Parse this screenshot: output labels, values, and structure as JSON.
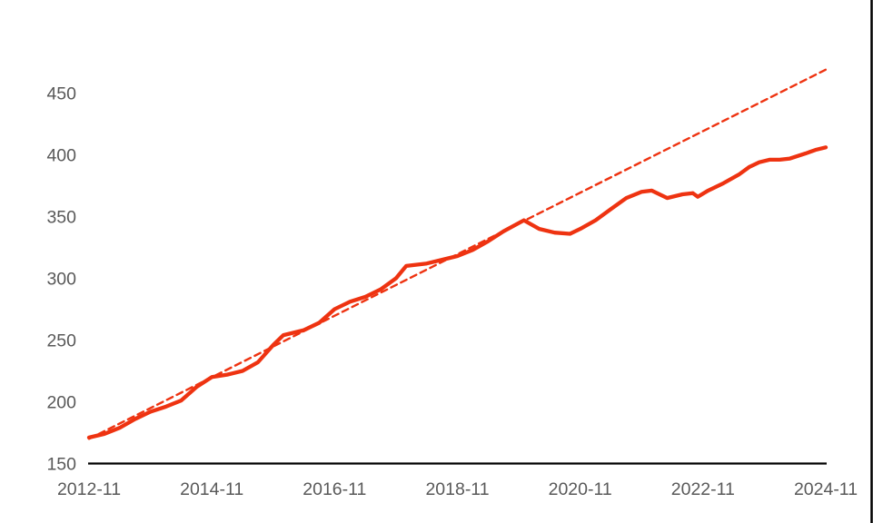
{
  "chart_data": {
    "type": "line",
    "title": "",
    "xlabel": "",
    "ylabel": "",
    "grid": "off",
    "legend": "none",
    "ylim": [
      150,
      450
    ],
    "y_tick_step": 50,
    "x_range_months": [
      "2012-11",
      "2024-11"
    ],
    "y_tick_labels": [
      "150",
      "200",
      "250",
      "300",
      "350",
      "400",
      "450"
    ],
    "x_tick_labels": [
      "2012-11",
      "2014-11",
      "2016-11",
      "2018-11",
      "2020-11",
      "2022-11",
      "2024-11"
    ],
    "series": [
      {
        "name": "index-actual",
        "style": "solid",
        "color": "#ee3311",
        "points": [
          [
            "2012-11",
            171
          ],
          [
            "2013-02",
            174
          ],
          [
            "2013-05",
            179
          ],
          [
            "2013-08",
            186
          ],
          [
            "2013-11",
            192
          ],
          [
            "2014-02",
            196
          ],
          [
            "2014-05",
            201
          ],
          [
            "2014-08",
            212
          ],
          [
            "2014-11",
            220
          ],
          [
            "2015-02",
            222
          ],
          [
            "2015-05",
            225
          ],
          [
            "2015-08",
            232
          ],
          [
            "2015-11",
            246
          ],
          [
            "2016-01",
            254
          ],
          [
            "2016-05",
            258
          ],
          [
            "2016-08",
            264
          ],
          [
            "2016-11",
            275
          ],
          [
            "2017-02",
            281
          ],
          [
            "2017-05",
            285
          ],
          [
            "2017-08",
            291
          ],
          [
            "2017-11",
            300
          ],
          [
            "2018-01",
            310
          ],
          [
            "2018-05",
            312
          ],
          [
            "2018-08",
            315
          ],
          [
            "2018-11",
            318
          ],
          [
            "2019-02",
            323
          ],
          [
            "2019-05",
            330
          ],
          [
            "2019-08",
            338
          ],
          [
            "2019-12",
            347
          ],
          [
            "2020-03",
            340
          ],
          [
            "2020-06",
            337
          ],
          [
            "2020-09",
            336
          ],
          [
            "2020-11",
            340
          ],
          [
            "2021-02",
            347
          ],
          [
            "2021-05",
            356
          ],
          [
            "2021-08",
            365
          ],
          [
            "2021-11",
            370
          ],
          [
            "2022-01",
            371
          ],
          [
            "2022-04",
            365
          ],
          [
            "2022-07",
            368
          ],
          [
            "2022-09",
            369
          ],
          [
            "2022-10",
            366
          ],
          [
            "2022-12",
            371
          ],
          [
            "2023-03",
            377
          ],
          [
            "2023-06",
            384
          ],
          [
            "2023-08",
            390
          ],
          [
            "2023-10",
            394
          ],
          [
            "2023-12",
            396
          ],
          [
            "2024-02",
            396
          ],
          [
            "2024-04",
            397
          ],
          [
            "2024-07",
            401
          ],
          [
            "2024-09",
            404
          ],
          [
            "2024-11",
            406
          ]
        ]
      },
      {
        "name": "linear-trend",
        "style": "dashed",
        "color": "#ee3311",
        "points": [
          [
            "2012-11",
            170
          ],
          [
            "2024-11",
            469
          ]
        ]
      }
    ]
  },
  "colors": {
    "line": "#ee3311",
    "tick_text": "#595959",
    "axis": "#000000",
    "right_border": "#000000",
    "background": "#ffffff"
  }
}
